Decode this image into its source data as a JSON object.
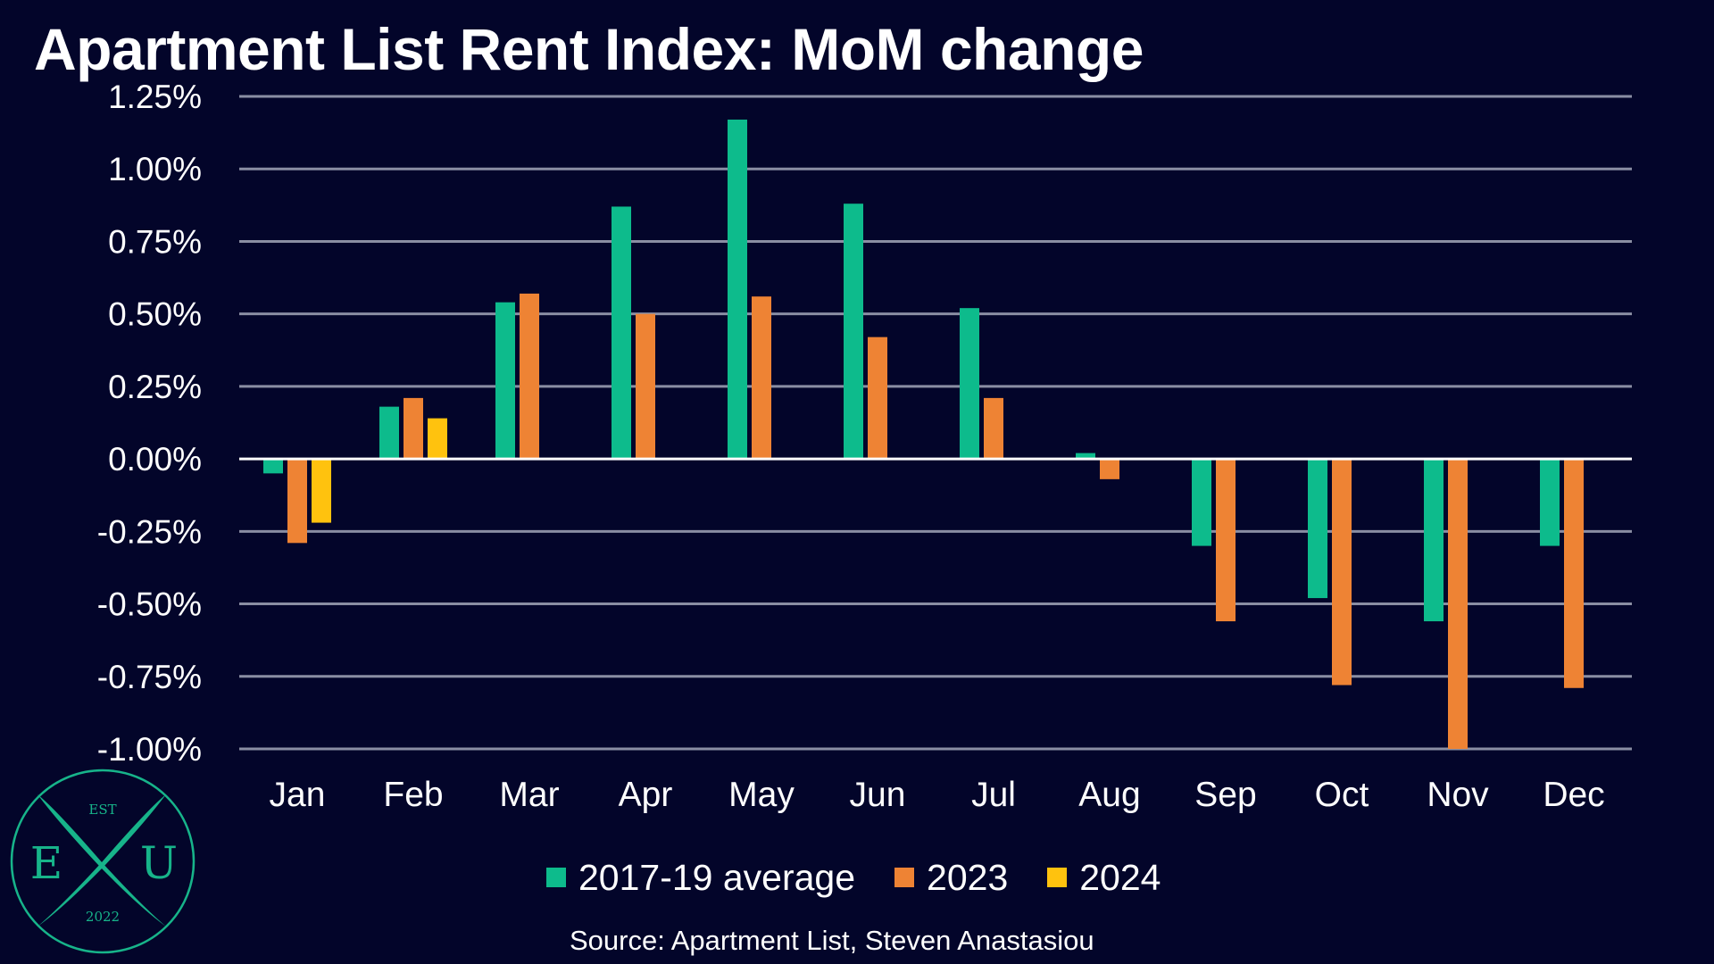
{
  "chart_data": {
    "type": "bar",
    "title": "Apartment List Rent Index: MoM change",
    "categories": [
      "Jan",
      "Feb",
      "Mar",
      "Apr",
      "May",
      "Jun",
      "Jul",
      "Aug",
      "Sep",
      "Oct",
      "Nov",
      "Dec"
    ],
    "series": [
      {
        "name": "2017-19 average",
        "color": "#0dbb8c",
        "values": [
          -0.05,
          0.18,
          0.54,
          0.87,
          1.17,
          0.88,
          0.52,
          0.02,
          -0.3,
          -0.48,
          -0.56,
          -0.3
        ]
      },
      {
        "name": "2023",
        "color": "#ee8334",
        "values": [
          -0.29,
          0.21,
          0.57,
          0.5,
          0.56,
          0.42,
          0.21,
          -0.07,
          -0.56,
          -0.78,
          -1.0,
          -0.79
        ]
      },
      {
        "name": "2024",
        "color": "#ffc20e",
        "values": [
          -0.22,
          0.14,
          null,
          null,
          null,
          null,
          null,
          null,
          null,
          null,
          null,
          null
        ]
      }
    ],
    "ylim": [
      -1.0,
      1.25
    ],
    "yticks": [
      -1.0,
      -0.75,
      -0.5,
      -0.25,
      0.0,
      0.25,
      0.5,
      0.75,
      1.0,
      1.25
    ],
    "ytick_labels": [
      "-1.00%",
      "-0.75%",
      "-0.50%",
      "-0.25%",
      "0.00%",
      "0.25%",
      "0.50%",
      "0.75%",
      "1.00%",
      "1.25%"
    ],
    "grid": true,
    "legend": "bottom",
    "source": "Source: Apartment List, Steven Anastasiou"
  },
  "logo": {
    "top_text": "EST",
    "left_letter": "E",
    "right_letter": "U",
    "bottom_text": "2022",
    "color": "#17b48a"
  },
  "colors": {
    "background": "#03052a",
    "grid": "#8a8ea3",
    "zero_line": "#ffffff"
  }
}
